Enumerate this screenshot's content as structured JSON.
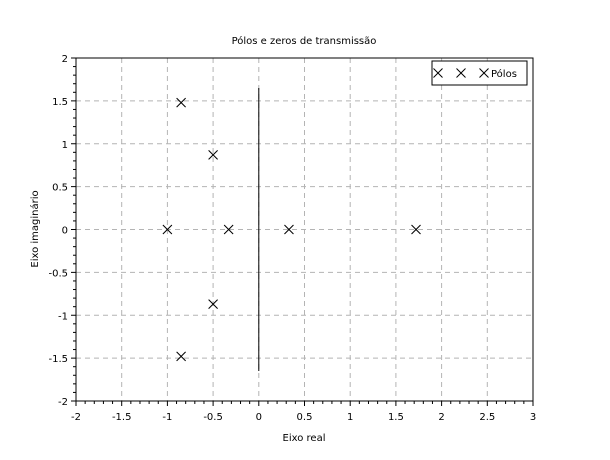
{
  "chart_data": {
    "type": "scatter",
    "title": "Pólos e zeros de transmissão",
    "xlabel": "Eixo real",
    "ylabel": "Eixo imaginário",
    "xlim": [
      -2,
      3
    ],
    "ylim": [
      -2,
      2
    ],
    "xticks": [
      -2,
      -1.5,
      -1,
      -0.5,
      0,
      0.5,
      1,
      1.5,
      2,
      2.5,
      3
    ],
    "yticks": [
      -2,
      -1.5,
      -1,
      -0.5,
      0,
      0.5,
      1,
      1.5,
      2
    ],
    "xtick_labels": [
      "-2",
      "-1.5",
      "-1",
      "-0.5",
      "0",
      "0.5",
      "1",
      "1.5",
      "2",
      "2.5",
      "3"
    ],
    "ytick_labels": [
      "-2",
      "-1.5",
      "-1",
      "-0.5",
      "0",
      "0.5",
      "1",
      "1.5",
      "2"
    ],
    "grid": true,
    "legend_position": "top-right",
    "series": [
      {
        "name": "Pólos",
        "marker": "x",
        "color": "#000000",
        "x": [
          -0.85,
          -0.5,
          -1.0,
          -0.33,
          0.33,
          1.72,
          -0.5,
          -0.85
        ],
        "y": [
          1.48,
          0.87,
          0.0,
          0.0,
          0.0,
          0.0,
          -0.87,
          -1.48
        ]
      }
    ],
    "vertical_segment": {
      "x": 0.0,
      "y_from": -1.65,
      "y_to": 1.65,
      "color": "#000000"
    }
  }
}
